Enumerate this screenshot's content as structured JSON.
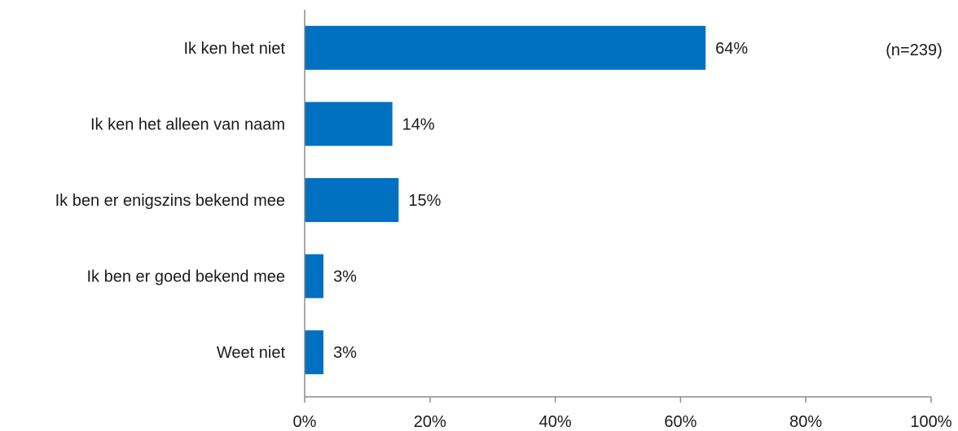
{
  "chart_data": {
    "type": "bar",
    "orientation": "horizontal",
    "categories": [
      "Ik ken het niet",
      "Ik ken het alleen van naam",
      "Ik ben er enigszins bekend mee",
      "Ik ben er goed bekend mee",
      "Weet niet"
    ],
    "values": [
      64,
      14,
      15,
      3,
      3
    ],
    "value_labels": [
      "64%",
      "14%",
      "15%",
      "3%",
      "3%"
    ],
    "xlim": [
      0,
      100
    ],
    "xticks": [
      0,
      20,
      40,
      60,
      80,
      100
    ],
    "xtick_labels": [
      "0%",
      "20%",
      "40%",
      "60%",
      "80%",
      "100%"
    ],
    "annotation": "(n=239)",
    "bar_color": "#0070C0",
    "grid": false
  }
}
